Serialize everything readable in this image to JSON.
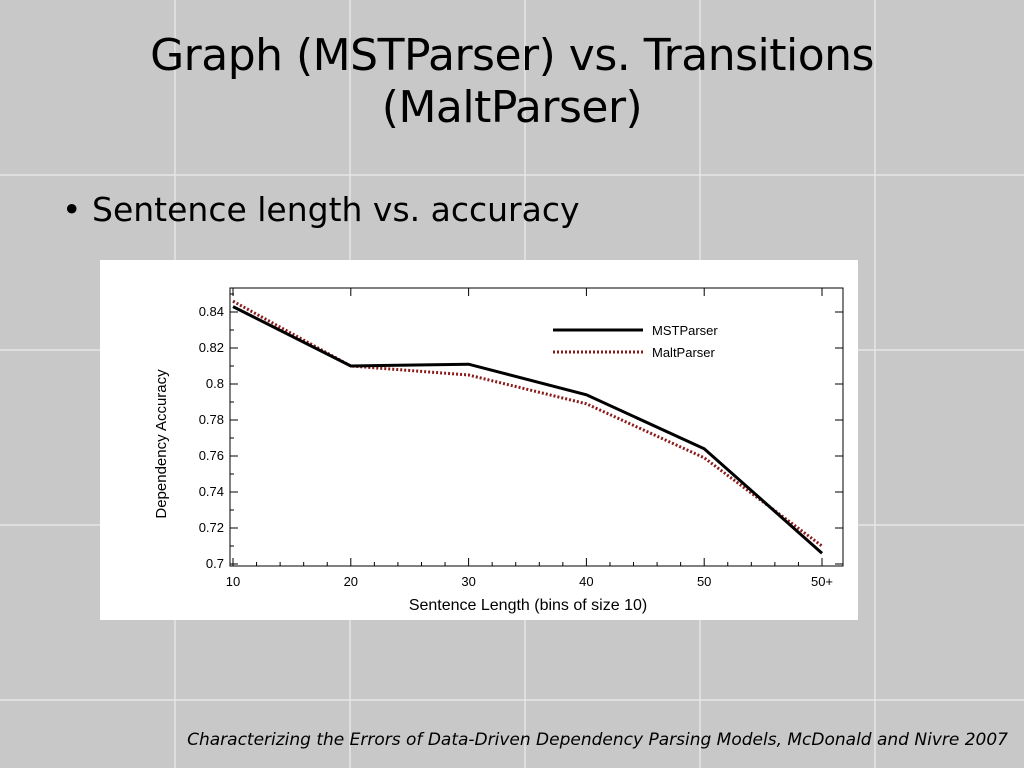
{
  "slide": {
    "title_line1": "Graph (MSTParser) vs. Transitions",
    "title_line2": "(MaltParser)",
    "bullet": "Sentence length vs. accuracy",
    "citation": "Characterizing the Errors of Data-Driven Dependency Parsing Models, McDonald and Nivre 2007"
  },
  "chart_data": {
    "type": "line",
    "xlabel": "Sentence Length (bins of size 10)",
    "ylabel": "Dependency Accuracy",
    "categories": [
      "10",
      "20",
      "30",
      "40",
      "50",
      "50+"
    ],
    "ylim": [
      0.7,
      0.85
    ],
    "yticks": [
      "0.7",
      "0.72",
      "0.74",
      "0.76",
      "0.78",
      "0.8",
      "0.82",
      "0.84"
    ],
    "grid": false,
    "legend_position": "top-right",
    "series": [
      {
        "name": "MSTParser",
        "values": [
          0.843,
          0.81,
          0.811,
          0.794,
          0.764,
          0.706
        ],
        "color": "#000000",
        "style": "solid"
      },
      {
        "name": "MaltParser",
        "values": [
          0.846,
          0.81,
          0.805,
          0.789,
          0.759,
          0.71
        ],
        "color": "#8b1a1a",
        "style": "dotted"
      }
    ]
  },
  "colors": {
    "background": "#c8c8c8",
    "grid_line": "#e6e6e6",
    "chart_bg": "#ffffff"
  }
}
